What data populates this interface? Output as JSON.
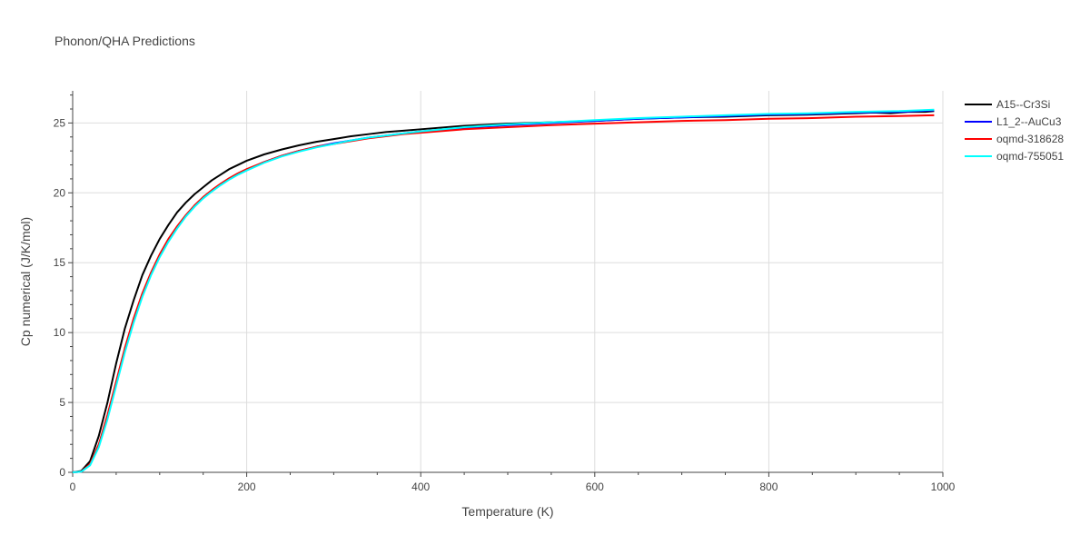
{
  "chart_data": {
    "type": "line",
    "title": "Phonon/QHA Predictions",
    "xlabel": "Temperature (K)",
    "ylabel": "Cp numerical (J/K/mol)",
    "xlim": [
      0,
      1000
    ],
    "ylim": [
      0,
      27.3
    ],
    "xticks": [
      0,
      200,
      400,
      600,
      800,
      1000
    ],
    "yticks": [
      0,
      5,
      10,
      15,
      20,
      25
    ],
    "grid": true,
    "legend_position": "top-right",
    "series": [
      {
        "name": "A15--Cr3Si",
        "color": "#000000",
        "x": [
          0,
          10,
          20,
          30,
          40,
          50,
          60,
          70,
          80,
          90,
          100,
          110,
          120,
          130,
          140,
          150,
          160,
          170,
          180,
          190,
          200,
          220,
          240,
          260,
          280,
          300,
          320,
          340,
          360,
          380,
          400,
          450,
          500,
          550,
          600,
          650,
          700,
          750,
          800,
          850,
          900,
          920,
          940,
          960,
          980,
          990
        ],
        "y": [
          0,
          0.1,
          0.8,
          2.6,
          5.0,
          7.8,
          10.3,
          12.3,
          14.1,
          15.5,
          16.7,
          17.7,
          18.6,
          19.3,
          19.9,
          20.4,
          20.9,
          21.3,
          21.7,
          22.0,
          22.3,
          22.75,
          23.1,
          23.4,
          23.65,
          23.85,
          24.05,
          24.2,
          24.35,
          24.45,
          24.55,
          24.8,
          24.95,
          25.05,
          25.15,
          25.3,
          25.4,
          25.45,
          25.55,
          25.6,
          25.7,
          25.75,
          25.7,
          25.8,
          25.8,
          25.85
        ]
      },
      {
        "name": "L1_2--AuCu3",
        "color": "#0000ff",
        "x": [
          0,
          10,
          20,
          30,
          40,
          50,
          60,
          70,
          80,
          90,
          100,
          110,
          120,
          130,
          140,
          150,
          160,
          170,
          180,
          190,
          200,
          220,
          240,
          260,
          280,
          300,
          320,
          340,
          360,
          380,
          400,
          450,
          500,
          550,
          600,
          650,
          700,
          750,
          800,
          850,
          900,
          950,
          990
        ],
        "y": [
          0,
          0.05,
          0.55,
          1.9,
          4.0,
          6.4,
          8.8,
          10.9,
          12.7,
          14.2,
          15.5,
          16.6,
          17.55,
          18.35,
          19.05,
          19.65,
          20.15,
          20.6,
          21.0,
          21.35,
          21.65,
          22.2,
          22.65,
          23.0,
          23.3,
          23.55,
          23.75,
          23.95,
          24.1,
          24.25,
          24.4,
          24.65,
          24.85,
          25.0,
          25.15,
          25.3,
          25.4,
          25.5,
          25.6,
          25.65,
          25.75,
          25.8,
          25.9
        ]
      },
      {
        "name": "oqmd-318628",
        "color": "#ff0000",
        "x": [
          0,
          10,
          20,
          30,
          40,
          50,
          60,
          70,
          80,
          90,
          100,
          110,
          120,
          130,
          140,
          150,
          160,
          170,
          180,
          190,
          200,
          220,
          240,
          260,
          280,
          300,
          320,
          340,
          360,
          380,
          400,
          450,
          500,
          550,
          600,
          650,
          700,
          750,
          800,
          850,
          900,
          950,
          990
        ],
        "y": [
          0,
          0.05,
          0.6,
          2.0,
          4.1,
          6.5,
          8.9,
          11.0,
          12.8,
          14.3,
          15.6,
          16.7,
          17.6,
          18.4,
          19.1,
          19.7,
          20.2,
          20.65,
          21.05,
          21.4,
          21.7,
          22.2,
          22.65,
          23.0,
          23.3,
          23.5,
          23.7,
          23.9,
          24.05,
          24.2,
          24.3,
          24.55,
          24.7,
          24.85,
          24.95,
          25.05,
          25.15,
          25.2,
          25.3,
          25.35,
          25.45,
          25.5,
          25.55
        ]
      },
      {
        "name": "oqmd-755051",
        "color": "#00ffff",
        "x": [
          0,
          10,
          20,
          30,
          40,
          50,
          60,
          70,
          80,
          90,
          100,
          110,
          120,
          130,
          140,
          150,
          160,
          170,
          180,
          190,
          200,
          220,
          240,
          260,
          280,
          300,
          320,
          340,
          360,
          380,
          400,
          450,
          500,
          550,
          600,
          650,
          700,
          750,
          800,
          850,
          900,
          950,
          990
        ],
        "y": [
          0,
          0.05,
          0.5,
          1.8,
          3.8,
          6.2,
          8.6,
          10.7,
          12.55,
          14.1,
          15.4,
          16.5,
          17.45,
          18.3,
          19.0,
          19.6,
          20.1,
          20.55,
          20.95,
          21.3,
          21.6,
          22.15,
          22.6,
          22.95,
          23.25,
          23.5,
          23.75,
          23.95,
          24.1,
          24.25,
          24.4,
          24.7,
          24.9,
          25.05,
          25.2,
          25.35,
          25.45,
          25.55,
          25.65,
          25.7,
          25.8,
          25.85,
          25.95
        ]
      }
    ]
  }
}
